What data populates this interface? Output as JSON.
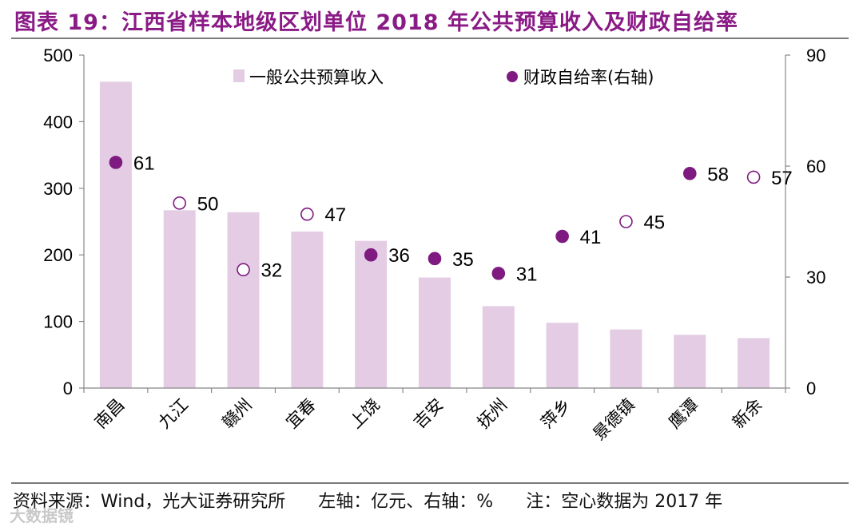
{
  "title": "图表 19：江西省样本地级区划单位 2018 年公共预算收入及财政自给率",
  "footer": {
    "source": "资料来源：Wind，光大证券研究所",
    "axis_note": "左轴：亿元、右轴：%",
    "note": "注：空心数据为 2017 年"
  },
  "watermark": "大数据镜",
  "colors": {
    "title": "#8a1a86",
    "bar": "#e3cce4",
    "dot": "#7e1a80",
    "axis": "#888888"
  },
  "chart_data": {
    "type": "bar",
    "categories": [
      "南昌",
      "九江",
      "赣州",
      "宜春",
      "上饶",
      "吉安",
      "抚州",
      "萍乡",
      "景德镇",
      "鹰潭",
      "新余"
    ],
    "series": [
      {
        "name": "一般公共预算收入",
        "axis": "left",
        "type": "bar",
        "values": [
          460,
          267,
          264,
          235,
          221,
          166,
          123,
          98,
          88,
          80,
          75
        ]
      },
      {
        "name": "财政自给率(右轴)",
        "axis": "right",
        "type": "scatter",
        "values": [
          61,
          50,
          32,
          47,
          36,
          35,
          31,
          41,
          45,
          58,
          57
        ],
        "hollow": [
          false,
          true,
          true,
          true,
          false,
          false,
          false,
          false,
          true,
          false,
          true
        ]
      }
    ],
    "left_axis": {
      "min": 0,
      "max": 500,
      "ticks": [
        0,
        100,
        200,
        300,
        400,
        500
      ]
    },
    "right_axis": {
      "min": 0,
      "max": 90,
      "ticks": [
        0,
        30,
        60,
        90
      ]
    },
    "legend": {
      "position": "top-center",
      "entries": [
        "一般公共预算收入",
        "财政自给率(右轴)"
      ]
    }
  }
}
